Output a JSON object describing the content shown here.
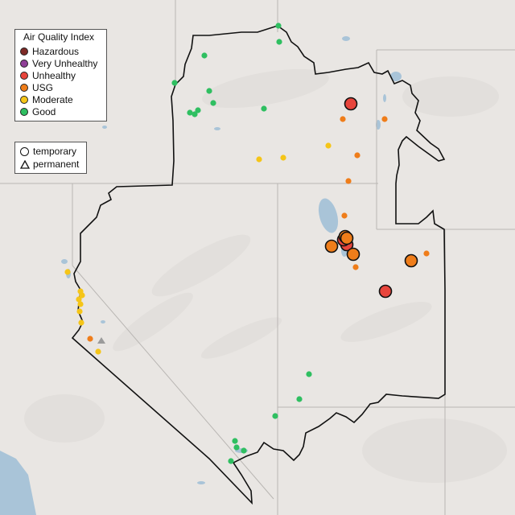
{
  "legend": {
    "title": "Air Quality Index",
    "items": [
      {
        "label": "Hazardous",
        "color": "#7e2a26"
      },
      {
        "label": "Very Unhealthy",
        "color": "#8f3f97"
      },
      {
        "label": "Unhealthy",
        "color": "#e8453c"
      },
      {
        "label": "USG",
        "color": "#ef7d1a"
      },
      {
        "label": "Moderate",
        "color": "#f5c518"
      },
      {
        "label": "Good",
        "color": "#2fbf61"
      }
    ]
  },
  "monitor_types": [
    {
      "label": "temporary",
      "shape": "circle"
    },
    {
      "label": "permanent",
      "shape": "triangle"
    }
  ],
  "colors": {
    "background": "#e9e6e3",
    "water": "#a9c4d8",
    "region_outline": "#111111",
    "state_lines": "#b9b6b3"
  },
  "monitors": [
    {
      "type": "temporary",
      "aqi": "Unhealthy"
    },
    {
      "type": "temporary",
      "aqi": "Unhealthy"
    },
    {
      "type": "temporary",
      "aqi": "Unhealthy"
    },
    {
      "type": "temporary",
      "aqi": "Unhealthy"
    },
    {
      "type": "temporary",
      "aqi": "USG"
    },
    {
      "type": "temporary",
      "aqi": "USG"
    },
    {
      "type": "temporary",
      "aqi": "USG"
    },
    {
      "type": "temporary",
      "aqi": "USG"
    },
    {
      "type": "temporary",
      "aqi": "USG"
    },
    {
      "type": "permanent",
      "aqi": "USG"
    },
    {
      "type": "permanent",
      "aqi": "USG"
    },
    {
      "type": "permanent",
      "aqi": "USG"
    },
    {
      "type": "permanent",
      "aqi": "USG"
    },
    {
      "type": "permanent",
      "aqi": "USG"
    },
    {
      "type": "permanent",
      "aqi": "USG"
    },
    {
      "type": "permanent",
      "aqi": "USG"
    },
    {
      "type": "permanent",
      "aqi": "USG"
    },
    {
      "type": "permanent",
      "aqi": "Moderate"
    },
    {
      "type": "permanent",
      "aqi": "Moderate"
    },
    {
      "type": "permanent",
      "aqi": "Moderate"
    },
    {
      "type": "permanent",
      "aqi": "Moderate"
    },
    {
      "type": "permanent",
      "aqi": "Moderate"
    },
    {
      "type": "permanent",
      "aqi": "Moderate"
    },
    {
      "type": "permanent",
      "aqi": "Moderate"
    },
    {
      "type": "permanent",
      "aqi": "Moderate"
    },
    {
      "type": "permanent",
      "aqi": "Moderate"
    },
    {
      "type": "permanent",
      "aqi": "Moderate"
    },
    {
      "type": "permanent",
      "aqi": "Moderate"
    },
    {
      "type": "permanent",
      "aqi": "Good"
    },
    {
      "type": "permanent",
      "aqi": "Good"
    },
    {
      "type": "permanent",
      "aqi": "Good"
    },
    {
      "type": "permanent",
      "aqi": "Good"
    },
    {
      "type": "permanent",
      "aqi": "Good"
    },
    {
      "type": "permanent",
      "aqi": "Good"
    },
    {
      "type": "permanent",
      "aqi": "Good"
    },
    {
      "type": "permanent",
      "aqi": "Good"
    },
    {
      "type": "permanent",
      "aqi": "Good"
    },
    {
      "type": "permanent",
      "aqi": "Good"
    },
    {
      "type": "permanent",
      "aqi": "Good"
    },
    {
      "type": "permanent",
      "aqi": "Good"
    },
    {
      "type": "permanent",
      "aqi": "Good"
    },
    {
      "type": "permanent",
      "aqi": "Good"
    },
    {
      "type": "permanent",
      "aqi": "Good"
    },
    {
      "type": "permanent",
      "aqi": "Good"
    },
    {
      "type": "permanent",
      "aqi": "Good"
    }
  ]
}
